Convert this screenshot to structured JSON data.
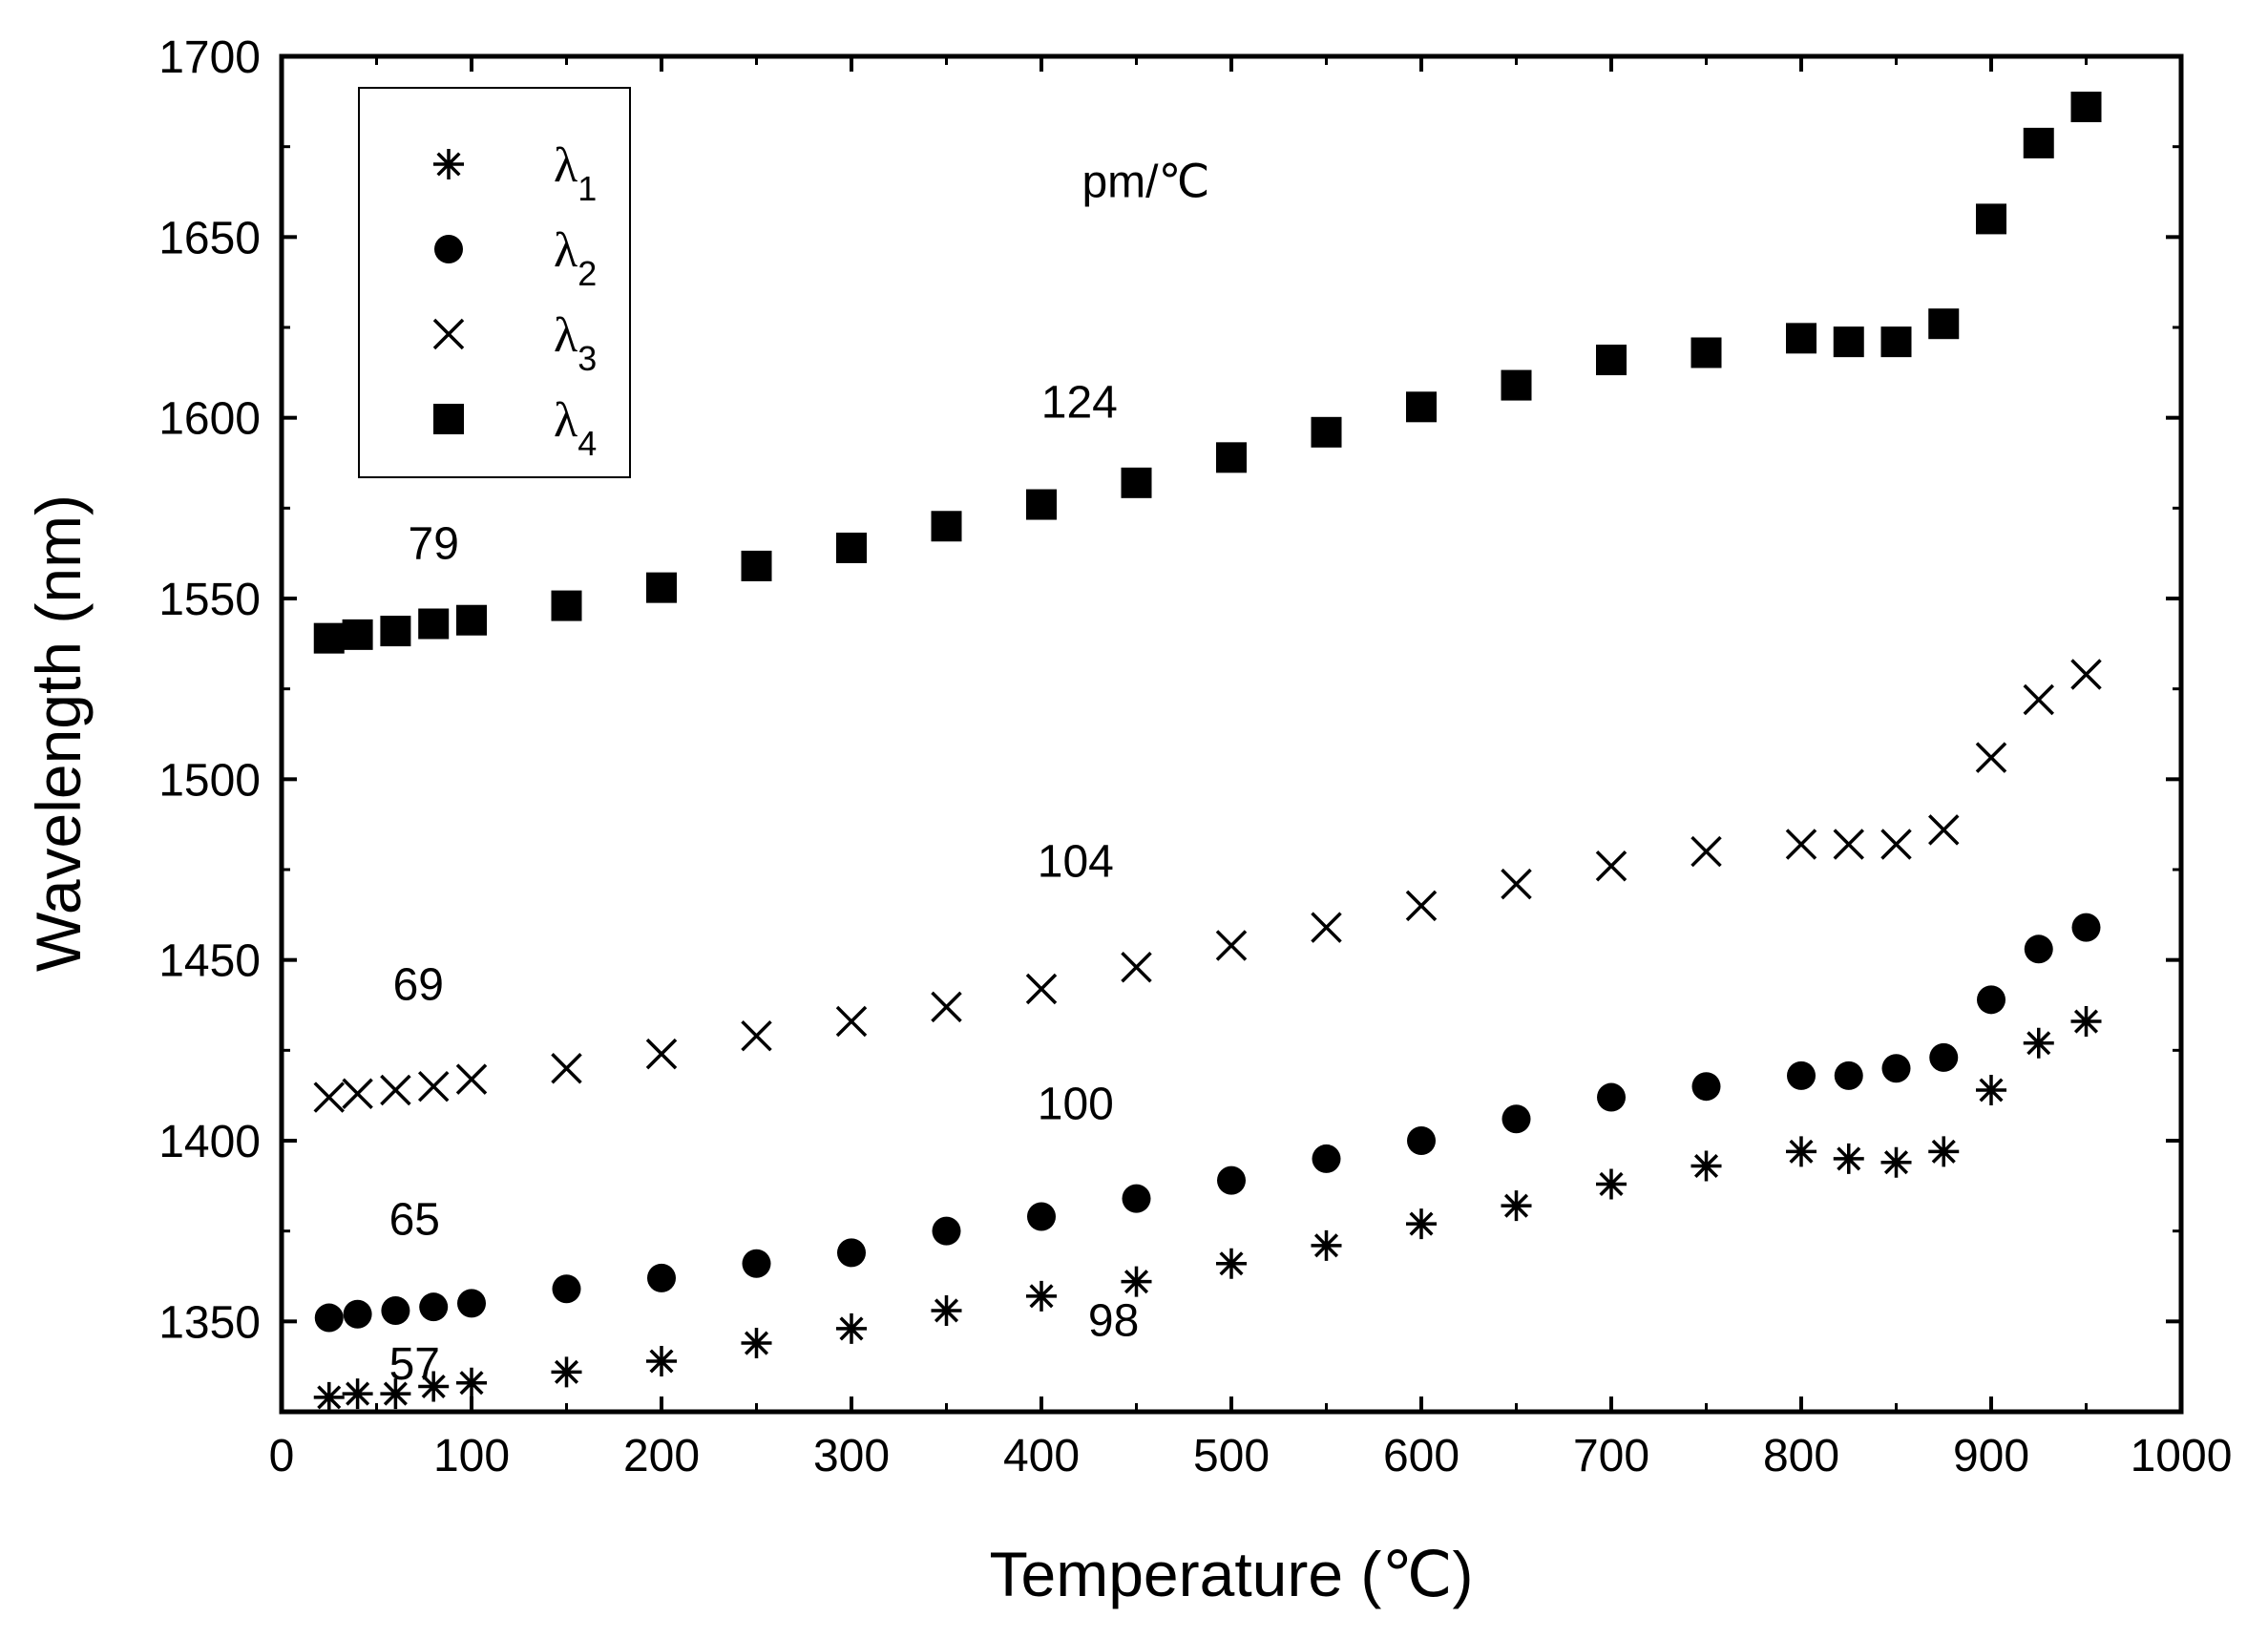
{
  "chart_data": {
    "type": "scatter",
    "xlabel": "Temperature (℃)",
    "ylabel": "Wavelength (nm)",
    "xlim": [
      0,
      1000
    ],
    "ylim": [
      1325,
      1700
    ],
    "xticks": [
      0,
      100,
      200,
      300,
      400,
      500,
      600,
      700,
      800,
      900,
      1000
    ],
    "yticks": [
      1350,
      1400,
      1450,
      1500,
      1550,
      1600,
      1650,
      1700
    ],
    "x": [
      25,
      40,
      60,
      80,
      100,
      150,
      200,
      250,
      300,
      350,
      400,
      450,
      500,
      550,
      600,
      650,
      700,
      750,
      800,
      825,
      850,
      875,
      900,
      925,
      950
    ],
    "series": [
      {
        "name": "λ1",
        "base": "λ",
        "sub": "1",
        "marker": "asterisk",
        "values": [
          1329,
          1330,
          1330,
          1332,
          1333,
          1336,
          1339,
          1344,
          1348,
          1353,
          1357,
          1361,
          1366,
          1371,
          1377,
          1382,
          1388,
          1393,
          1397,
          1395,
          1394,
          1397,
          1414,
          1427,
          1433
        ]
      },
      {
        "name": "λ2",
        "base": "λ",
        "sub": "2",
        "marker": "circle",
        "values": [
          1351,
          1352,
          1353,
          1354,
          1355,
          1359,
          1362,
          1366,
          1369,
          1375,
          1379,
          1384,
          1389,
          1395,
          1400,
          1406,
          1412,
          1415,
          1418,
          1418,
          1420,
          1423,
          1439,
          1453,
          1459
        ]
      },
      {
        "name": "λ3",
        "base": "λ",
        "sub": "3",
        "marker": "x",
        "values": [
          1412,
          1413,
          1414,
          1415,
          1417,
          1420,
          1424,
          1429,
          1433,
          1437,
          1442,
          1448,
          1454,
          1459,
          1465,
          1471,
          1476,
          1480,
          1482,
          1482,
          1482,
          1486,
          1506,
          1522,
          1529
        ]
      },
      {
        "name": "λ4",
        "base": "λ",
        "sub": "4",
        "marker": "square",
        "values": [
          1539,
          1540,
          1541,
          1543,
          1544,
          1548,
          1553,
          1559,
          1564,
          1570,
          1576,
          1582,
          1589,
          1596,
          1603,
          1609,
          1616,
          1618,
          1622,
          1621,
          1621,
          1626,
          1655,
          1676,
          1686
        ]
      }
    ],
    "annotations": [
      {
        "text": "pm/℃",
        "x": 455,
        "y": 1661
      },
      {
        "text": "124",
        "x": 420,
        "y": 1600
      },
      {
        "text": "79",
        "x": 80,
        "y": 1561
      },
      {
        "text": "104",
        "x": 418,
        "y": 1473
      },
      {
        "text": "69",
        "x": 72,
        "y": 1439
      },
      {
        "text": "100",
        "x": 418,
        "y": 1406
      },
      {
        "text": "65",
        "x": 70,
        "y": 1374
      },
      {
        "text": "98",
        "x": 438,
        "y": 1346
      },
      {
        "text": "57",
        "x": 70,
        "y": 1334
      }
    ],
    "legend": {
      "position": "top-left"
    },
    "grid": false
  }
}
